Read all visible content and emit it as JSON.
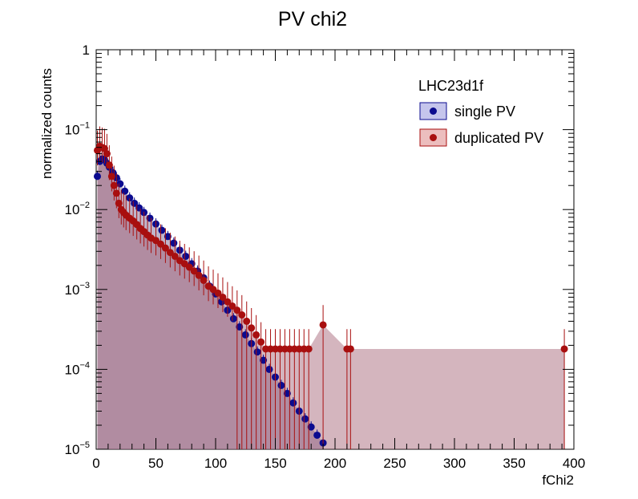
{
  "chart_data": {
    "type": "scatter",
    "title": "PV chi2",
    "xlabel": "fChi2",
    "ylabel": "normalized counts",
    "xlim": [
      0,
      400
    ],
    "ylim": [
      1e-05,
      1
    ],
    "yscale": "log",
    "x_ticks": [
      0,
      50,
      100,
      150,
      200,
      250,
      300,
      350,
      400
    ],
    "y_ticks": [
      {
        "mantissa": "1",
        "exp": ""
      },
      {
        "mantissa": "10",
        "exp": "−1"
      },
      {
        "mantissa": "10",
        "exp": "−2"
      },
      {
        "mantissa": "10",
        "exp": "−3"
      },
      {
        "mantissa": "10",
        "exp": "−4"
      },
      {
        "mantissa": "10",
        "exp": "−5"
      }
    ],
    "legend": {
      "header": "LHC23d1f",
      "placement": "top-right"
    },
    "series": [
      {
        "name": "single PV",
        "color": "#0b0b8f",
        "fill": "rgba(90,90,200,0.35)",
        "points": [
          [
            1,
            0.026
          ],
          [
            3,
            0.04
          ],
          [
            5,
            0.043
          ],
          [
            7,
            0.042
          ],
          [
            9,
            0.038
          ],
          [
            11,
            0.034
          ],
          [
            14,
            0.029
          ],
          [
            17,
            0.025
          ],
          [
            20,
            0.021
          ],
          [
            24,
            0.017
          ],
          [
            28,
            0.014
          ],
          [
            32,
            0.012
          ],
          [
            36,
            0.0105
          ],
          [
            40,
            0.0092
          ],
          [
            45,
            0.0078
          ],
          [
            50,
            0.0066
          ],
          [
            55,
            0.0055
          ],
          [
            60,
            0.0046
          ],
          [
            65,
            0.0038
          ],
          [
            70,
            0.0031
          ],
          [
            75,
            0.0026
          ],
          [
            80,
            0.0021
          ],
          [
            85,
            0.0017
          ],
          [
            90,
            0.0014
          ],
          [
            95,
            0.0011
          ],
          [
            100,
            0.00088
          ],
          [
            105,
            0.0007
          ],
          [
            110,
            0.00055
          ],
          [
            115,
            0.00043
          ],
          [
            120,
            0.00034
          ],
          [
            125,
            0.00027
          ],
          [
            130,
            0.00021
          ],
          [
            135,
            0.000165
          ],
          [
            140,
            0.00013
          ],
          [
            145,
            0.0001
          ],
          [
            150,
            8e-05
          ],
          [
            155,
            6.3e-05
          ],
          [
            160,
            5e-05
          ],
          [
            165,
            3.8e-05
          ],
          [
            170,
            3e-05
          ],
          [
            175,
            2.4e-05
          ],
          [
            180,
            1.9e-05
          ],
          [
            185,
            1.5e-05
          ],
          [
            190,
            1.2e-05
          ]
        ]
      },
      {
        "name": "duplicated PV",
        "color": "#a80f0f",
        "fill": "rgba(200,70,70,0.35)",
        "points": [
          [
            1,
            0.055
          ],
          [
            3,
            0.062
          ],
          [
            5,
            0.06
          ],
          [
            7,
            0.058
          ],
          [
            9,
            0.05
          ],
          [
            11,
            0.036
          ],
          [
            13,
            0.026
          ],
          [
            15,
            0.02
          ],
          [
            17,
            0.016
          ],
          [
            19,
            0.012
          ],
          [
            21,
            0.01
          ],
          [
            23,
            0.0092
          ],
          [
            25,
            0.0085
          ],
          [
            28,
            0.0078
          ],
          [
            31,
            0.0072
          ],
          [
            34,
            0.0065
          ],
          [
            37,
            0.0058
          ],
          [
            40,
            0.0053
          ],
          [
            43,
            0.0048
          ],
          [
            46,
            0.0044
          ],
          [
            50,
            0.0041
          ],
          [
            54,
            0.0037
          ],
          [
            58,
            0.0033
          ],
          [
            62,
            0.0029
          ],
          [
            66,
            0.0026
          ],
          [
            70,
            0.0023
          ],
          [
            74,
            0.0021
          ],
          [
            78,
            0.0019
          ],
          [
            82,
            0.0017
          ],
          [
            86,
            0.0015
          ],
          [
            90,
            0.0013
          ],
          [
            94,
            0.0011
          ],
          [
            98,
            0.001
          ],
          [
            102,
            0.0009
          ],
          [
            106,
            0.0008
          ],
          [
            110,
            0.0007
          ],
          [
            114,
            0.00062
          ],
          [
            118,
            0.00055
          ],
          [
            122,
            0.00048
          ],
          [
            126,
            0.0004
          ],
          [
            130,
            0.00033
          ],
          [
            134,
            0.00027
          ],
          [
            138,
            0.00022
          ],
          [
            142,
            0.00018
          ],
          [
            146,
            0.00018
          ],
          [
            150,
            0.00018
          ],
          [
            154,
            0.00018
          ],
          [
            158,
            0.00018
          ],
          [
            162,
            0.00018
          ],
          [
            166,
            0.00018
          ],
          [
            170,
            0.00018
          ],
          [
            174,
            0.00018
          ],
          [
            178,
            0.00018
          ],
          [
            190,
            0.00036
          ],
          [
            210,
            0.00018
          ],
          [
            213,
            0.00018
          ],
          [
            392,
            0.00018
          ]
        ]
      }
    ]
  }
}
